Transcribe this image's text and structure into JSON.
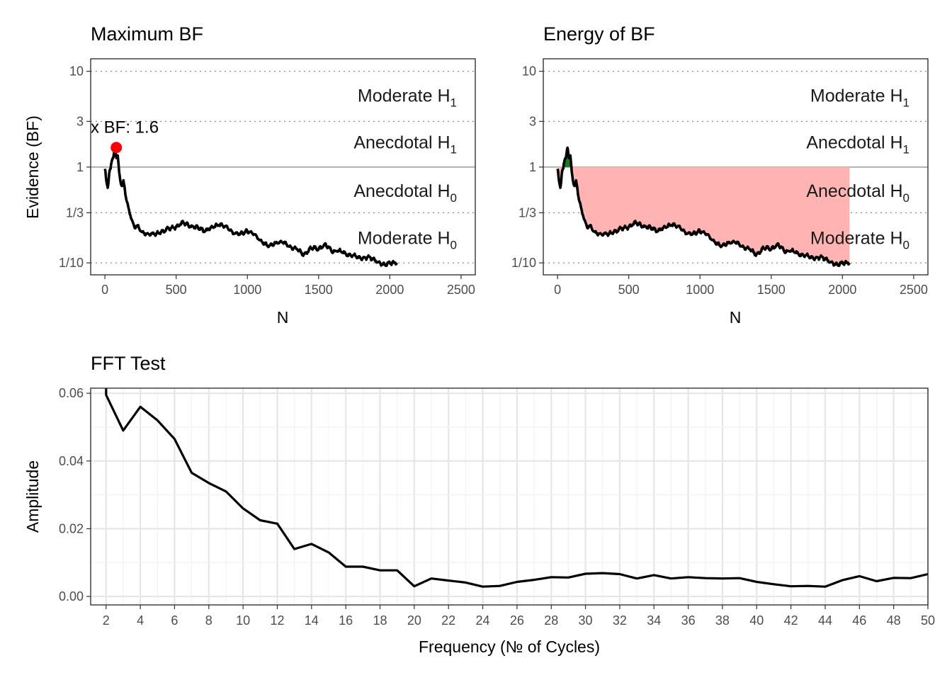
{
  "chart_data": [
    {
      "type": "line",
      "title": "Maximum BF",
      "xlabel": "N",
      "ylabel": "Evidence (BF)",
      "xlim": [
        -100,
        2600
      ],
      "x_ticks": [
        "0",
        "500",
        "1000",
        "1500",
        "2000",
        "2500"
      ],
      "y_scale": "log",
      "ylim": [
        0.075,
        13.5
      ],
      "y_ticks": [
        {
          "label": "10",
          "value": 10
        },
        {
          "label": "3",
          "value": 3
        },
        {
          "label": "1",
          "value": 1
        },
        {
          "label": "1/3",
          "value": 0.3333
        },
        {
          "label": "1/10",
          "value": 0.1
        }
      ],
      "region_labels": [
        {
          "main": "Moderate H",
          "sub": "1",
          "at": 5.5
        },
        {
          "main": "Anecdotal H",
          "sub": "1",
          "at": 1.8
        },
        {
          "main": "Anecdotal H",
          "sub": "0",
          "at": 0.56
        },
        {
          "main": "Moderate H",
          "sub": "0",
          "at": 0.18
        }
      ],
      "series": [
        {
          "x": [
            0,
            10,
            20,
            30,
            40,
            50,
            60,
            70,
            80,
            90,
            100,
            110,
            120,
            130,
            140,
            150,
            170,
            190,
            210,
            230,
            260,
            300,
            350,
            400,
            450,
            500,
            550,
            600,
            650,
            700,
            750,
            800,
            850,
            900,
            950,
            1000,
            1050,
            1100,
            1150,
            1200,
            1250,
            1300,
            1350,
            1400,
            1450,
            1500,
            1550,
            1600,
            1650,
            1700,
            1750,
            1800,
            1850,
            1900,
            1950,
            2000,
            2050
          ],
          "y": [
            0.98,
            0.7,
            0.62,
            0.85,
            0.95,
            1.22,
            1.28,
            1.55,
            1.3,
            1.35,
            0.85,
            0.72,
            0.62,
            0.7,
            0.6,
            0.45,
            0.36,
            0.27,
            0.24,
            0.245,
            0.21,
            0.2,
            0.2,
            0.21,
            0.23,
            0.235,
            0.265,
            0.24,
            0.235,
            0.215,
            0.235,
            0.25,
            0.24,
            0.205,
            0.2,
            0.215,
            0.2,
            0.165,
            0.15,
            0.16,
            0.165,
            0.145,
            0.14,
            0.12,
            0.145,
            0.14,
            0.155,
            0.13,
            0.135,
            0.12,
            0.12,
            0.11,
            0.115,
            0.105,
            0.095,
            0.1,
            0.1
          ]
        }
      ],
      "max_point": {
        "x": 80,
        "y": 1.6,
        "label": "x BF: 1.6",
        "color": "#ff0000"
      }
    },
    {
      "type": "area",
      "title": "Energy of BF",
      "xlabel": "N",
      "ylabel": "",
      "xlim": [
        -100,
        2600
      ],
      "x_ticks": [
        "0",
        "500",
        "1000",
        "1500",
        "2000",
        "2500"
      ],
      "y_scale": "log",
      "ylim": [
        0.075,
        13.5
      ],
      "y_ticks": [
        {
          "label": "10",
          "value": 10
        },
        {
          "label": "3",
          "value": 3
        },
        {
          "label": "1",
          "value": 1
        },
        {
          "label": "1/3",
          "value": 0.3333
        },
        {
          "label": "1/10",
          "value": 0.1
        }
      ],
      "region_labels": [
        {
          "main": "Moderate H",
          "sub": "1",
          "at": 5.5
        },
        {
          "main": "Anecdotal H",
          "sub": "1",
          "at": 1.8
        },
        {
          "main": "Anecdotal H",
          "sub": "0",
          "at": 0.56
        },
        {
          "main": "Moderate H",
          "sub": "0",
          "at": 0.18
        }
      ],
      "fill_below_1_color": "#ffb3b3",
      "fill_above_1_color": "#1b7a1b",
      "line_color": "#000000"
    },
    {
      "type": "line",
      "title": "FFT Test",
      "xlabel": "Frequency (№ of Cycles)",
      "ylabel": "Amplitude",
      "xlim": [
        1.1,
        50
      ],
      "ylim": [
        -0.0025,
        0.0615
      ],
      "x_ticks": [
        "2",
        "4",
        "6",
        "8",
        "10",
        "12",
        "14",
        "16",
        "18",
        "20",
        "22",
        "24",
        "26",
        "28",
        "30",
        "32",
        "34",
        "36",
        "38",
        "40",
        "42",
        "44",
        "46",
        "48",
        "50"
      ],
      "y_ticks": [
        "0.00",
        "0.02",
        "0.04",
        "0.06"
      ],
      "x": [
        2,
        3,
        4,
        5,
        6,
        7,
        8,
        9,
        10,
        11,
        12,
        13,
        14,
        15,
        16,
        17,
        18,
        19,
        20,
        21,
        22,
        23,
        24,
        25,
        26,
        27,
        28,
        29,
        30,
        31,
        32,
        33,
        34,
        35,
        36,
        37,
        38,
        39,
        40,
        41,
        42,
        43,
        44,
        45,
        46,
        47,
        48,
        49,
        50
      ],
      "y": [
        0.0595,
        0.049,
        0.056,
        0.052,
        0.0465,
        0.0365,
        0.0335,
        0.031,
        0.026,
        0.0225,
        0.0215,
        0.014,
        0.0155,
        0.013,
        0.0088,
        0.0088,
        0.0077,
        0.0077,
        0.003,
        0.0053,
        0.0047,
        0.0041,
        0.0029,
        0.0031,
        0.0043,
        0.0049,
        0.0057,
        0.0056,
        0.0067,
        0.0069,
        0.0066,
        0.0053,
        0.0063,
        0.0053,
        0.0057,
        0.0054,
        0.0053,
        0.0054,
        0.0043,
        0.0036,
        0.003,
        0.0031,
        0.0029,
        0.0048,
        0.006,
        0.0045,
        0.0055,
        0.0054,
        0.0066
      ]
    }
  ]
}
